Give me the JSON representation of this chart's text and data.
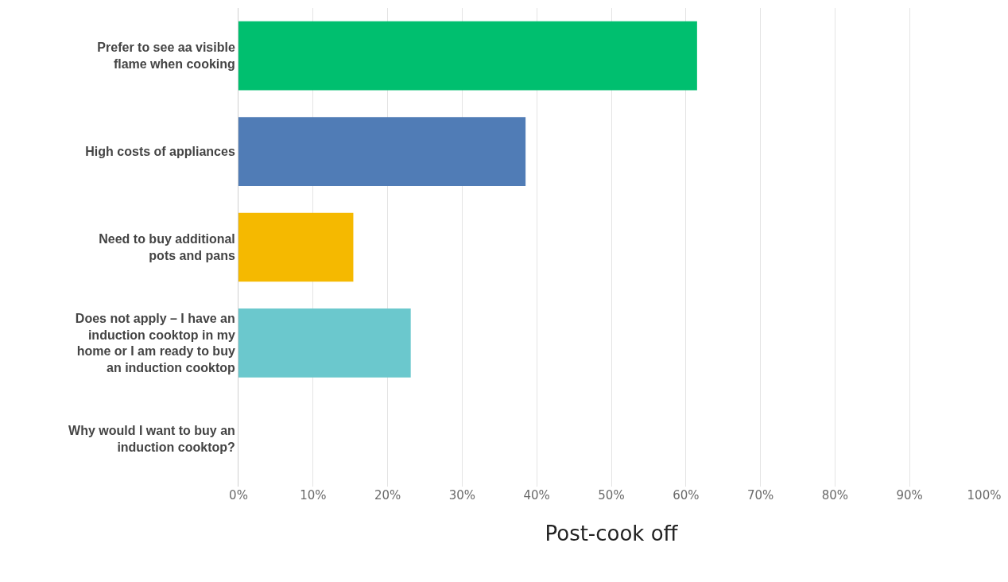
{
  "chart_data": {
    "type": "bar",
    "orientation": "horizontal",
    "xlabel": "Post-cook off",
    "categories": [
      "Prefer to see aa visible flame when cooking",
      "High costs of appliances",
      "Need to buy additional pots and pans",
      "Does not apply – I have an induction cooktop in my home or I am ready to buy an induction cooktop",
      "Why would I want to buy an induction cooktop?"
    ],
    "values": [
      61.5,
      38.5,
      15.4,
      23.1,
      0
    ],
    "colors": [
      "#00bf6f",
      "#507cb6",
      "#f5b900",
      "#6bc8cd",
      "#9b9b9b"
    ],
    "xlim": [
      0,
      100
    ],
    "xticks": [
      {
        "value": 0,
        "label": "0%"
      },
      {
        "value": 10,
        "label": "10%"
      },
      {
        "value": 20,
        "label": "20%"
      },
      {
        "value": 30,
        "label": "30%"
      },
      {
        "value": 40,
        "label": "40%"
      },
      {
        "value": 50,
        "label": "50%"
      },
      {
        "value": 60,
        "label": "60%"
      },
      {
        "value": 70,
        "label": "70%"
      },
      {
        "value": 80,
        "label": "80%"
      },
      {
        "value": 90,
        "label": "90%"
      },
      {
        "value": 100,
        "label": "100%"
      }
    ],
    "grid": "x"
  }
}
